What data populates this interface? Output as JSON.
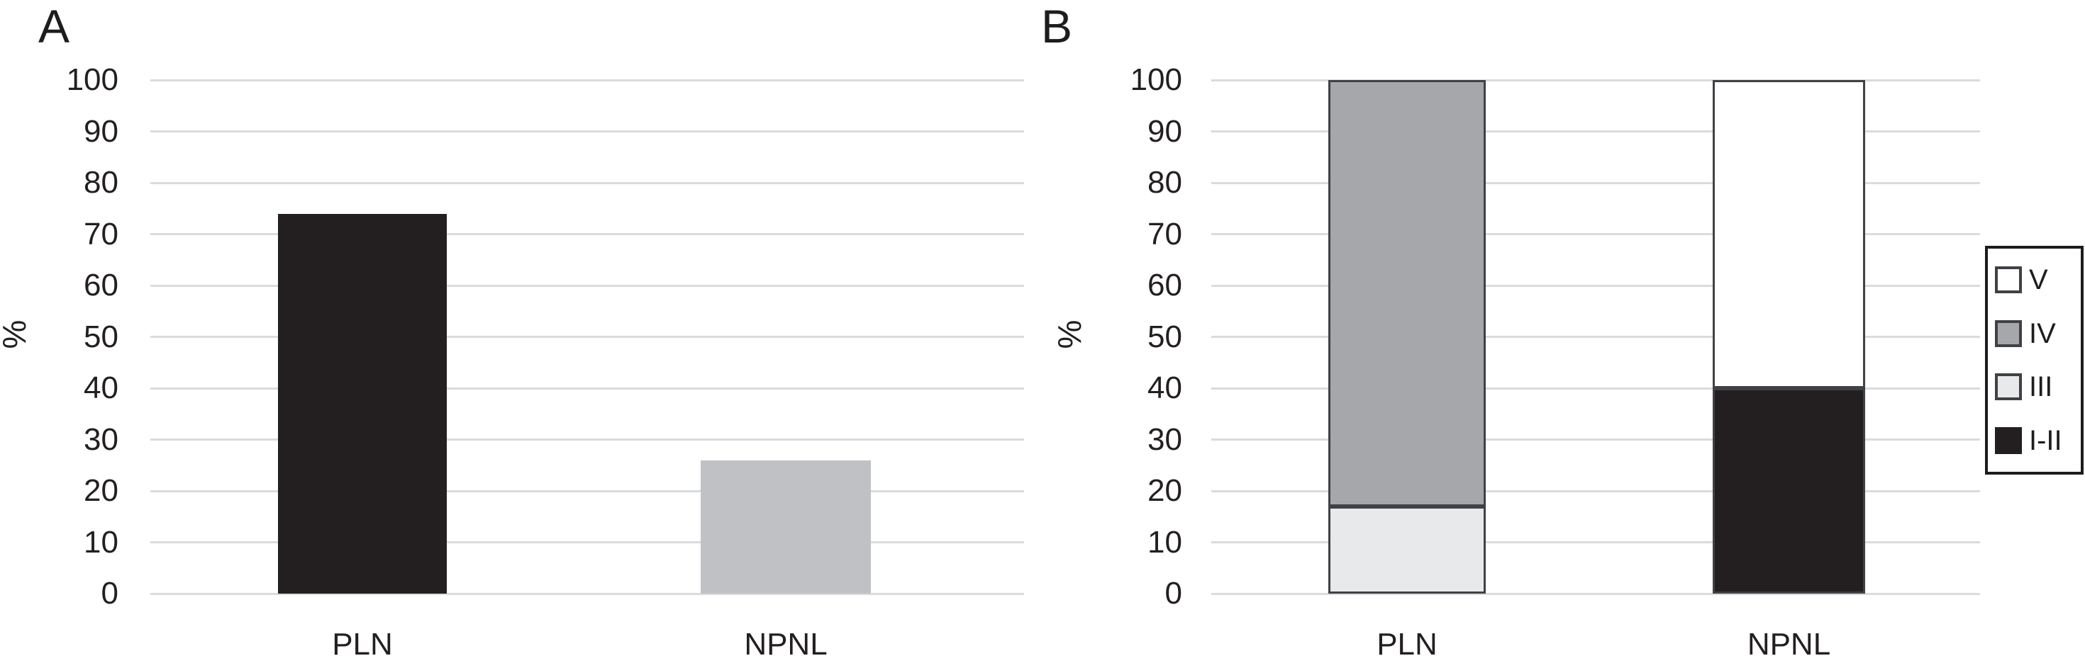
{
  "figure": {
    "background": "#ffffff",
    "text_color": "#231f20",
    "gridline_color": "#dadbdc",
    "bar_border_color": "#404145",
    "legend_border_color": "#1c1c1e"
  },
  "chart_data": [
    {
      "panel": "A",
      "type": "bar",
      "title": "A",
      "categories": [
        "PLN",
        "NPNL"
      ],
      "values": [
        74,
        26
      ],
      "bar_colors": [
        "#231f20",
        "#bfc1c4"
      ],
      "xlabel": "",
      "ylabel": "%",
      "ylim": [
        0,
        100
      ],
      "yticks": [
        0,
        10,
        20,
        30,
        40,
        50,
        60,
        70,
        80,
        90,
        100
      ],
      "grid": true,
      "legend": null
    },
    {
      "panel": "B",
      "type": "bar",
      "stacked": true,
      "title": "B",
      "categories": [
        "PLN",
        "NPNL"
      ],
      "series": [
        {
          "name": "I-II",
          "color": "#231f20",
          "values": [
            0,
            40
          ]
        },
        {
          "name": "III",
          "color": "#e8e9ea",
          "values": [
            17,
            0
          ]
        },
        {
          "name": "IV",
          "color": "#a5a7aa",
          "values": [
            83,
            0
          ]
        },
        {
          "name": "V",
          "color": "#ffffff",
          "values": [
            0,
            60
          ]
        }
      ],
      "xlabel": "",
      "ylabel": "%",
      "ylim": [
        0,
        100
      ],
      "yticks": [
        0,
        10,
        20,
        30,
        40,
        50,
        60,
        70,
        80,
        90,
        100
      ],
      "grid": true,
      "legend": {
        "position": "right",
        "entries": [
          "V",
          "IV",
          "III",
          "I-II"
        ]
      }
    }
  ]
}
